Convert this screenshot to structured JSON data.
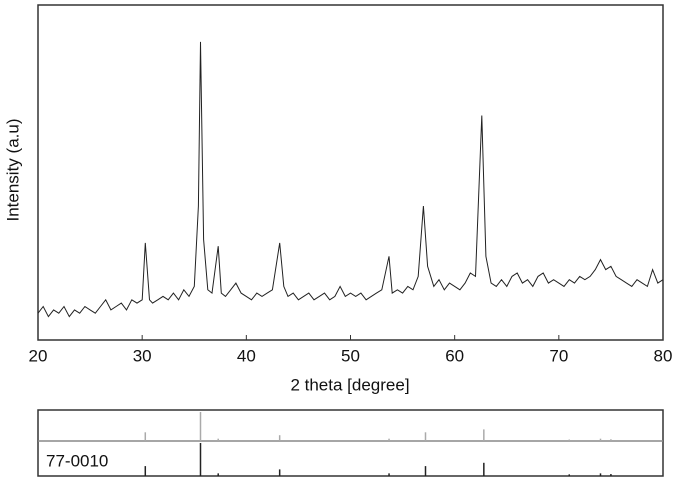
{
  "chart_data": [
    {
      "type": "line",
      "xlabel": "2 theta [degree]",
      "ylabel": "Intensity (a.u)",
      "xlim": [
        20,
        80
      ],
      "xticks": [
        20,
        30,
        40,
        50,
        60,
        70,
        80
      ],
      "ylim": [
        0,
        100
      ],
      "color": "#222222",
      "x": [
        20,
        20.5,
        21,
        21.5,
        22,
        22.5,
        23,
        23.5,
        24,
        24.5,
        25,
        25.5,
        26,
        26.5,
        27,
        27.5,
        28,
        28.5,
        29,
        29.5,
        30,
        30.3,
        30.7,
        31,
        31.5,
        32,
        32.5,
        33,
        33.5,
        34,
        34.5,
        35,
        35.4,
        35.6,
        35.9,
        36.3,
        36.7,
        37.3,
        37.6,
        38,
        38.5,
        39,
        39.5,
        40,
        40.5,
        41,
        41.5,
        42,
        42.5,
        43.2,
        43.6,
        44,
        44.5,
        45,
        45.5,
        46,
        46.5,
        47,
        47.5,
        48,
        48.5,
        49,
        49.5,
        50,
        50.5,
        51,
        51.5,
        52,
        52.5,
        53,
        53.7,
        54,
        54.5,
        55,
        55.5,
        56,
        56.5,
        57,
        57.4,
        58,
        58.5,
        59,
        59.5,
        60,
        60.5,
        61,
        61.5,
        62,
        62.6,
        63,
        63.5,
        64,
        64.5,
        65,
        65.5,
        66,
        66.5,
        67,
        67.5,
        68,
        68.5,
        69,
        69.5,
        70,
        70.5,
        71,
        71.5,
        72,
        72.5,
        73,
        73.5,
        74,
        74.5,
        75,
        75.5,
        76,
        76.5,
        77,
        77.5,
        78,
        78.5,
        79,
        79.5,
        80
      ],
      "values": [
        8,
        10,
        7,
        9,
        8,
        10,
        7,
        9,
        8,
        10,
        9,
        8,
        10,
        12,
        9,
        10,
        11,
        9,
        12,
        11,
        12,
        29,
        12,
        11,
        12,
        13,
        12,
        14,
        12,
        15,
        13,
        16,
        40,
        89,
        30,
        15,
        14,
        28,
        14,
        13,
        15,
        17,
        14,
        13,
        12,
        14,
        13,
        14,
        15,
        29,
        16,
        13,
        14,
        12,
        13,
        14,
        12,
        13,
        14,
        12,
        13,
        16,
        13,
        14,
        13,
        14,
        12,
        13,
        14,
        15,
        25,
        14,
        15,
        14,
        16,
        15,
        19,
        40,
        22,
        16,
        18,
        15,
        17,
        16,
        15,
        17,
        20,
        19,
        67,
        25,
        17,
        16,
        18,
        16,
        19,
        20,
        17,
        18,
        16,
        19,
        20,
        17,
        18,
        17,
        16,
        18,
        17,
        19,
        18,
        19,
        21,
        24,
        21,
        22,
        19,
        18,
        17,
        16,
        18,
        17,
        16,
        21,
        17,
        18
      ]
    },
    {
      "type": "stem",
      "name": "77-0010",
      "xlim": [
        20,
        80
      ],
      "ylim": [
        0,
        100
      ],
      "x": [
        30.3,
        35.6,
        37.3,
        43.2,
        53.7,
        57.2,
        62.8,
        71,
        74,
        75
      ],
      "values": [
        30,
        100,
        8,
        20,
        8,
        30,
        40,
        5,
        8,
        6
      ]
    }
  ]
}
